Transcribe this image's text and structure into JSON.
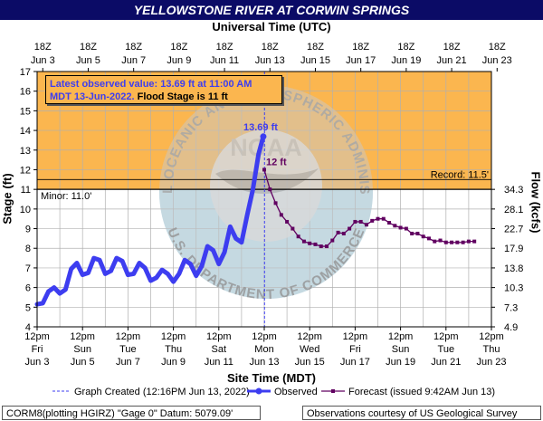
{
  "chart_data": {
    "type": "line",
    "title": "YELLOWSTONE RIVER AT CORWIN SPRINGS",
    "top_axis_title": "Universal Time (UTC)",
    "top_ticks": [
      {
        "x": "2022-06-03T18:00",
        "l1": "18Z",
        "l2": "Jun 3"
      },
      {
        "x": "2022-06-05T18:00",
        "l1": "18Z",
        "l2": "Jun 5"
      },
      {
        "x": "2022-06-07T18:00",
        "l1": "18Z",
        "l2": "Jun 7"
      },
      {
        "x": "2022-06-09T18:00",
        "l1": "18Z",
        "l2": "Jun 9"
      },
      {
        "x": "2022-06-11T18:00",
        "l1": "18Z",
        "l2": "Jun 11"
      },
      {
        "x": "2022-06-13T18:00",
        "l1": "18Z",
        "l2": "Jun 13"
      },
      {
        "x": "2022-06-15T18:00",
        "l1": "18Z",
        "l2": "Jun 15"
      },
      {
        "x": "2022-06-17T18:00",
        "l1": "18Z",
        "l2": "Jun 17"
      },
      {
        "x": "2022-06-19T18:00",
        "l1": "18Z",
        "l2": "Jun 19"
      },
      {
        "x": "2022-06-21T18:00",
        "l1": "18Z",
        "l2": "Jun 21"
      },
      {
        "x": "2022-06-23T18:00",
        "l1": "18Z",
        "l2": "Jun 23"
      }
    ],
    "bottom_axis_title": "Site Time (MDT)",
    "bottom_ticks": [
      {
        "x": "2022-06-03T12:00",
        "l1": "12pm",
        "l2": "Fri",
        "l3": "Jun 3"
      },
      {
        "x": "2022-06-05T12:00",
        "l1": "12pm",
        "l2": "Sun",
        "l3": "Jun 5"
      },
      {
        "x": "2022-06-07T12:00",
        "l1": "12pm",
        "l2": "Tue",
        "l3": "Jun 7"
      },
      {
        "x": "2022-06-09T12:00",
        "l1": "12pm",
        "l2": "Thu",
        "l3": "Jun 9"
      },
      {
        "x": "2022-06-11T12:00",
        "l1": "12pm",
        "l2": "Sat",
        "l3": "Jun 11"
      },
      {
        "x": "2022-06-13T12:00",
        "l1": "12pm",
        "l2": "Mon",
        "l3": "Jun 13"
      },
      {
        "x": "2022-06-15T12:00",
        "l1": "12pm",
        "l2": "Wed",
        "l3": "Jun 15"
      },
      {
        "x": "2022-06-17T12:00",
        "l1": "12pm",
        "l2": "Fri",
        "l3": "Jun 17"
      },
      {
        "x": "2022-06-19T12:00",
        "l1": "12pm",
        "l2": "Sun",
        "l3": "Jun 19"
      },
      {
        "x": "2022-06-21T12:00",
        "l1": "12pm",
        "l2": "Tue",
        "l3": "Jun 21"
      },
      {
        "x": "2022-06-23T12:00",
        "l1": "12pm",
        "l2": "Thu",
        "l3": "Jun 23"
      }
    ],
    "x_range": [
      "2022-06-03T12:00",
      "2022-06-23T12:00"
    ],
    "ylabel": "Stage (ft)",
    "ylim": [
      4,
      17
    ],
    "y_ticks": [
      4,
      5,
      6,
      7,
      8,
      9,
      10,
      11,
      12,
      13,
      14,
      15,
      16,
      17
    ],
    "y2label": "Flow (kcfs)",
    "y2_ticks": [
      {
        "stage": 4,
        "label": "4.9"
      },
      {
        "stage": 5,
        "label": "7.3"
      },
      {
        "stage": 6,
        "label": "10.3"
      },
      {
        "stage": 7,
        "label": "13.8"
      },
      {
        "stage": 8,
        "label": "17.9"
      },
      {
        "stage": 9,
        "label": "22.7"
      },
      {
        "stage": 10,
        "label": "28.1"
      },
      {
        "stage": 11,
        "label": "34.3"
      }
    ],
    "flood_stage": 11,
    "minor_label": "Minor: 11.0'",
    "record_label": "Record: 11.5'",
    "record_stage": 11.5,
    "grid": true,
    "colors": {
      "flood_zone": "#fbb64f",
      "below_zone": "#ffffff",
      "observed": "#3d3df0",
      "forecast": "#600060",
      "title_bg": "#0b0b66",
      "grid": "#b0b0b0"
    },
    "series": [
      {
        "name": "Observed",
        "points": [
          [
            "2022-06-03T12:00",
            5.15
          ],
          [
            "2022-06-03T18:00",
            5.2
          ],
          [
            "2022-06-04T00:00",
            5.8
          ],
          [
            "2022-06-04T06:00",
            6.0
          ],
          [
            "2022-06-04T12:00",
            5.7
          ],
          [
            "2022-06-04T18:00",
            5.9
          ],
          [
            "2022-06-05T00:00",
            6.95
          ],
          [
            "2022-06-05T06:00",
            7.25
          ],
          [
            "2022-06-05T12:00",
            6.65
          ],
          [
            "2022-06-05T18:00",
            6.75
          ],
          [
            "2022-06-06T00:00",
            7.5
          ],
          [
            "2022-06-06T06:00",
            7.4
          ],
          [
            "2022-06-06T12:00",
            6.7
          ],
          [
            "2022-06-06T18:00",
            6.85
          ],
          [
            "2022-06-07T00:00",
            7.5
          ],
          [
            "2022-06-07T06:00",
            7.35
          ],
          [
            "2022-06-07T12:00",
            6.65
          ],
          [
            "2022-06-07T18:00",
            6.7
          ],
          [
            "2022-06-08T00:00",
            7.25
          ],
          [
            "2022-06-08T06:00",
            7.0
          ],
          [
            "2022-06-08T12:00",
            6.35
          ],
          [
            "2022-06-08T18:00",
            6.5
          ],
          [
            "2022-06-09T00:00",
            6.9
          ],
          [
            "2022-06-09T06:00",
            6.7
          ],
          [
            "2022-06-09T12:00",
            6.3
          ],
          [
            "2022-06-09T18:00",
            6.7
          ],
          [
            "2022-06-10T00:00",
            7.4
          ],
          [
            "2022-06-10T06:00",
            7.2
          ],
          [
            "2022-06-10T12:00",
            6.6
          ],
          [
            "2022-06-10T18:00",
            7.1
          ],
          [
            "2022-06-11T00:00",
            8.1
          ],
          [
            "2022-06-11T06:00",
            7.9
          ],
          [
            "2022-06-11T12:00",
            7.2
          ],
          [
            "2022-06-11T18:00",
            7.8
          ],
          [
            "2022-06-12T00:00",
            9.1
          ],
          [
            "2022-06-12T06:00",
            8.5
          ],
          [
            "2022-06-12T12:00",
            8.3
          ],
          [
            "2022-06-12T18:00",
            9.7
          ],
          [
            "2022-06-13T00:00",
            11.0
          ],
          [
            "2022-06-13T06:00",
            12.8
          ],
          [
            "2022-06-13T11:00",
            13.69
          ]
        ]
      },
      {
        "name": "Forecast",
        "points": [
          [
            "2022-06-13T12:00",
            12.0
          ],
          [
            "2022-06-13T18:00",
            11.0
          ],
          [
            "2022-06-14T00:00",
            10.3
          ],
          [
            "2022-06-14T06:00",
            9.7
          ],
          [
            "2022-06-14T12:00",
            9.35
          ],
          [
            "2022-06-14T18:00",
            9.0
          ],
          [
            "2022-06-15T00:00",
            8.6
          ],
          [
            "2022-06-15T06:00",
            8.35
          ],
          [
            "2022-06-15T12:00",
            8.25
          ],
          [
            "2022-06-15T18:00",
            8.2
          ],
          [
            "2022-06-16T00:00",
            8.1
          ],
          [
            "2022-06-16T06:00",
            8.1
          ],
          [
            "2022-06-16T12:00",
            8.4
          ],
          [
            "2022-06-16T18:00",
            8.8
          ],
          [
            "2022-06-17T00:00",
            8.75
          ],
          [
            "2022-06-17T06:00",
            9.0
          ],
          [
            "2022-06-17T12:00",
            9.35
          ],
          [
            "2022-06-17T18:00",
            9.35
          ],
          [
            "2022-06-18T00:00",
            9.2
          ],
          [
            "2022-06-18T06:00",
            9.4
          ],
          [
            "2022-06-18T12:00",
            9.5
          ],
          [
            "2022-06-18T18:00",
            9.5
          ],
          [
            "2022-06-19T00:00",
            9.3
          ],
          [
            "2022-06-19T06:00",
            9.15
          ],
          [
            "2022-06-19T12:00",
            9.05
          ],
          [
            "2022-06-19T18:00",
            9.0
          ],
          [
            "2022-06-20T00:00",
            8.75
          ],
          [
            "2022-06-20T06:00",
            8.75
          ],
          [
            "2022-06-20T12:00",
            8.6
          ],
          [
            "2022-06-20T18:00",
            8.5
          ],
          [
            "2022-06-21T00:00",
            8.35
          ],
          [
            "2022-06-21T06:00",
            8.4
          ],
          [
            "2022-06-21T12:00",
            8.3
          ],
          [
            "2022-06-21T18:00",
            8.3
          ],
          [
            "2022-06-22T00:00",
            8.3
          ],
          [
            "2022-06-22T06:00",
            8.3
          ],
          [
            "2022-06-22T12:00",
            8.35
          ],
          [
            "2022-06-22T18:00",
            8.35
          ]
        ]
      }
    ],
    "graph_created_time": "2022-06-13T12:16",
    "annotations": {
      "latest_observed_label": "13.69 ft",
      "forecast_crest_label": "12 ft",
      "info_line1": "Latest observed value: 13.69 ft at 11:00 AM",
      "info_line2a": "MDT 13-Jun-2022.",
      "info_line2b": "Flood Stage is 11 ft"
    },
    "legend": {
      "placement": "bottom",
      "created": "Graph Created (12:16PM Jun 13, 2022)",
      "observed": "Observed",
      "forecast": "Forecast (issued 9:42AM Jun 13)"
    }
  },
  "watermark_text": {
    "top": "NATIONAL OCEANIC AND ATMOSPHERIC ADMINISTRATION",
    "bottom": "U.S. DEPARTMENT OF COMMERCE",
    "logo": "NOAA"
  },
  "footer": {
    "left": "CORM8(plotting HGIRZ) \"Gage 0\" Datum:  5079.09'",
    "right": "Observations courtesy of US Geological Survey"
  }
}
